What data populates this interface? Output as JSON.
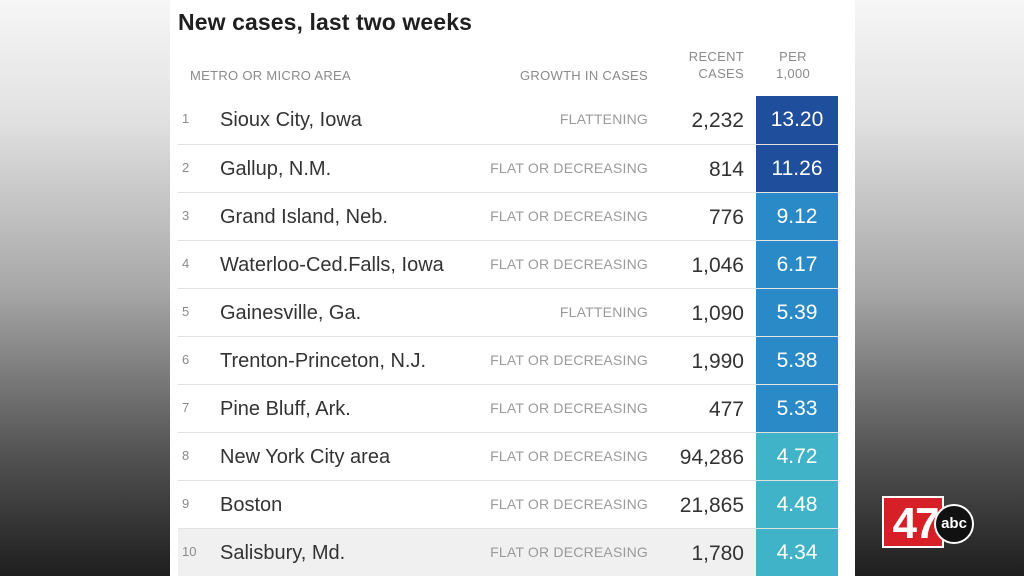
{
  "title": "New cases, last two weeks",
  "headers": {
    "metro": "METRO OR MICRO AREA",
    "growth": "GROWTH IN CASES",
    "recent_line1": "RECENT",
    "recent_line2": "CASES",
    "per_line1": "PER",
    "per_line2": "1,000"
  },
  "rows": [
    {
      "rank": "1",
      "name": "Sioux City, Iowa",
      "growth": "FLATTENING",
      "recent": "2,232",
      "per": "13.20",
      "color": "#1f4e9c"
    },
    {
      "rank": "2",
      "name": "Gallup, N.M.",
      "growth": "FLAT OR DECREASING",
      "recent": "814",
      "per": "11.26",
      "color": "#1f4e9c"
    },
    {
      "rank": "3",
      "name": "Grand Island, Neb.",
      "growth": "FLAT OR DECREASING",
      "recent": "776",
      "per": "9.12",
      "color": "#2a8ac8"
    },
    {
      "rank": "4",
      "name": "Waterloo-Ced.Falls, Iowa",
      "growth": "FLAT OR DECREASING",
      "recent": "1,046",
      "per": "6.17",
      "color": "#2a8ac8"
    },
    {
      "rank": "5",
      "name": "Gainesville, Ga.",
      "growth": "FLATTENING",
      "recent": "1,090",
      "per": "5.39",
      "color": "#2a8ac8"
    },
    {
      "rank": "6",
      "name": "Trenton-Princeton, N.J.",
      "growth": "FLAT OR DECREASING",
      "recent": "1,990",
      "per": "5.38",
      "color": "#2a8ac8"
    },
    {
      "rank": "7",
      "name": "Pine Bluff, Ark.",
      "growth": "FLAT OR DECREASING",
      "recent": "477",
      "per": "5.33",
      "color": "#2a8ac8"
    },
    {
      "rank": "8",
      "name": "New York City area",
      "growth": "FLAT OR DECREASING",
      "recent": "94,286",
      "per": "4.72",
      "color": "#41b3c8"
    },
    {
      "rank": "9",
      "name": "Boston",
      "growth": "FLAT OR DECREASING",
      "recent": "21,865",
      "per": "4.48",
      "color": "#41b3c8"
    },
    {
      "rank": "10",
      "name": "Salisbury, Md.",
      "growth": "FLAT OR DECREASING",
      "recent": "1,780",
      "per": "4.34",
      "color": "#41b3c8",
      "highlight": true
    }
  ],
  "logo": {
    "number": "47",
    "network": "abc",
    "color": "#d61f26"
  }
}
